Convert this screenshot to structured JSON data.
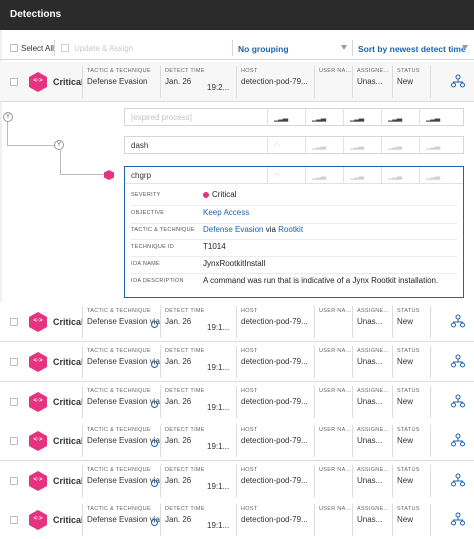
{
  "app": {
    "title": "Detections"
  },
  "toolbar": {
    "select_all": "Select All",
    "update_assign": "Update & Assign",
    "grouping": "No grouping",
    "sort": "Sort by newest detect time"
  },
  "columns": {
    "tactic": "TACTIC & TECHNIQUE",
    "time": "DETECT TIME",
    "host": "HOST",
    "user": "USER NA...",
    "assignee": "ASSIGNE...",
    "status": "STATUS"
  },
  "rows": [
    {
      "severity": "Critical",
      "tactic": "Defense Evasion",
      "date": "Jan. 26",
      "time": "19:2...",
      "host": "detection-pod-79...",
      "assignee": "Unas...",
      "status": "New"
    },
    {
      "severity": "Critical",
      "tactic": "Defense Evasion via...",
      "date": "Jan. 26",
      "time": "19:1...",
      "host": "detection-pod-79...",
      "assignee": "Unas...",
      "status": "New"
    },
    {
      "severity": "Critical",
      "tactic": "Defense Evasion via...",
      "date": "Jan. 26",
      "time": "19:1...",
      "host": "detection-pod-79...",
      "assignee": "Unas...",
      "status": "New"
    },
    {
      "severity": "Critical",
      "tactic": "Defense Evasion via...",
      "date": "Jan. 26",
      "time": "19:1...",
      "host": "detection-pod-79...",
      "assignee": "Unas...",
      "status": "New"
    },
    {
      "severity": "Critical",
      "tactic": "Defense Evasion via...",
      "date": "Jan. 26",
      "time": "19:1...",
      "host": "detection-pod-79...",
      "assignee": "Unas...",
      "status": "New"
    },
    {
      "severity": "Critical",
      "tactic": "Defense Evasion via...",
      "date": "Jan. 26",
      "time": "19:1...",
      "host": "detection-pod-79...",
      "assignee": "Unas...",
      "status": "New"
    },
    {
      "severity": "Critical",
      "tactic": "Defense Evasion via...",
      "date": "Jan. 26",
      "time": "19:1...",
      "host": "detection-pod-79...",
      "assignee": "Unas...",
      "status": "New"
    }
  ],
  "tree": {
    "expired": "[expired process]",
    "dash": "dash",
    "chgrp": "chgrp",
    "node_letter": "Y"
  },
  "detail": {
    "severity_label": "SEVERITY",
    "severity": "Critical",
    "objective_label": "OBJECTIVE",
    "objective": "Keep Access",
    "tactic_label": "TACTIC & TECHNIQUE",
    "tactic": "Defense Evasion",
    "via": " via ",
    "technique": "Rootkit",
    "technique_id_label": "TECHNIQUE ID",
    "technique_id": "T1014",
    "ioa_name_label": "IOA NAME",
    "ioa_name": "JynxRootkitInstall",
    "ioa_desc_label": "IOA DESCRIPTION",
    "ioa_desc": "A command was run that is indicative of a Jynx Rootkit installation."
  },
  "colors": {
    "critical": "#e6337f",
    "link": "#1c64b0",
    "titlebar": "#2b2b2b"
  },
  "icons": {
    "severity": "hexagon-code-icon",
    "network": "process-tree-icon",
    "info": "info-icon"
  }
}
